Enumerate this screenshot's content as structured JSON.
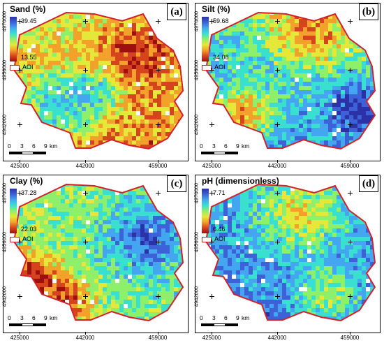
{
  "panels": [
    {
      "id": "a",
      "title": "Sand (%)",
      "label": "(a)",
      "legend_max": "39.45",
      "legend_min": "13.55",
      "aoi": "AOI",
      "pattern": "sand"
    },
    {
      "id": "b",
      "title": "Silt (%)",
      "label": "(b)",
      "legend_max": "59.68",
      "legend_min": "34.08",
      "aoi": "AOI",
      "pattern": "silt"
    },
    {
      "id": "c",
      "title": "Clay (%)",
      "label": "(c)",
      "legend_max": "37.28",
      "legend_min": "22.03",
      "aoi": "AOI",
      "pattern": "clay"
    },
    {
      "id": "d",
      "title": "pH (dimensionless)",
      "label": "(d)",
      "legend_max": "7.71",
      "legend_min": "6.46",
      "aoi": "AOI",
      "pattern": "ph"
    }
  ],
  "x_ticks": [
    "425000",
    "442000",
    "459000"
  ],
  "y_ticks": [
    "4970000",
    "4956000",
    "4942000"
  ],
  "scale_bar": {
    "labels": [
      "0",
      "3",
      "6",
      "9"
    ],
    "unit": "km"
  },
  "colors": {
    "aoi_outline": "#d3202a",
    "ramp_high": "#2b31a6",
    "ramp_low": "#9e1010"
  }
}
